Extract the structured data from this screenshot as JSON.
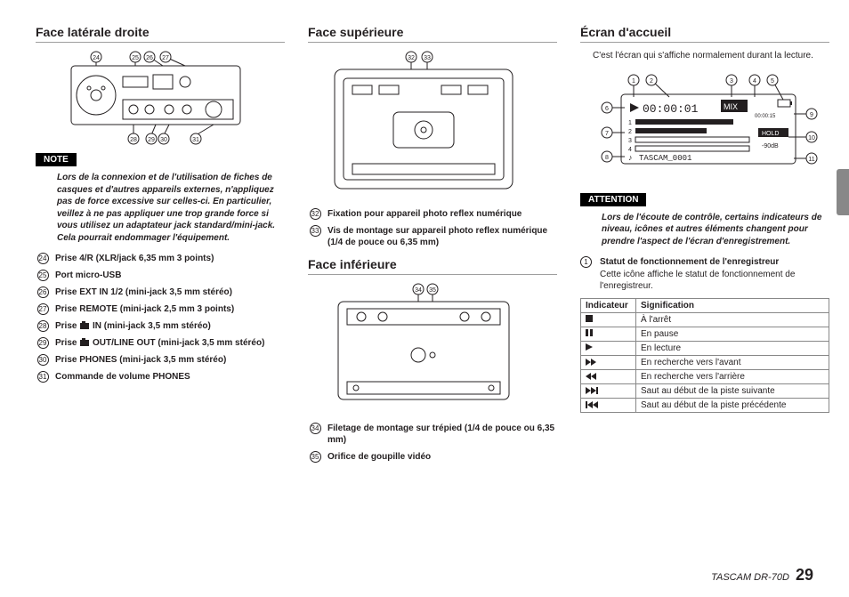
{
  "footer": {
    "model": "TASCAM DR-70D",
    "page": "29"
  },
  "col1": {
    "heading": "Face latérale droite",
    "note_label": "NOTE",
    "note_text": "Lors de la connexion et de l'utilisation de fiches de casques et d'autres appareils externes, n'appliquez pas de force excessive sur celles-ci. En particulier, veillez à ne pas appliquer une trop grande force si vous utilisez un adaptateur jack standard/mini-jack. Cela pourrait endommager l'équipement.",
    "items": [
      {
        "n": "24",
        "text": "Prise 4/R (XLR/jack 6,35 mm 3 points)"
      },
      {
        "n": "25",
        "text": "Port micro-USB"
      },
      {
        "n": "26",
        "text": "Prise EXT IN 1/2 (mini-jack 3,5 mm stéréo)"
      },
      {
        "n": "27",
        "text": "Prise REMOTE (mini-jack 2,5 mm 3 points)"
      },
      {
        "n": "28",
        "pre": "Prise ",
        "post": " IN (mini-jack 3,5 mm stéréo)",
        "cam": true
      },
      {
        "n": "29",
        "pre": "Prise ",
        "post": " OUT/LINE OUT (mini-jack 3,5 mm stéréo)",
        "cam": true
      },
      {
        "n": "30",
        "text": "Prise PHONES (mini-jack 3,5 mm stéréo)"
      },
      {
        "n": "31",
        "text": "Commande de volume PHONES"
      }
    ],
    "callouts_top": [
      "24",
      "25",
      "26",
      "27"
    ],
    "callouts_bottom": [
      "28",
      "29",
      "30",
      "31"
    ]
  },
  "col2": {
    "heading_top": "Face supérieure",
    "items_top": [
      {
        "n": "32",
        "text": "Fixation pour appareil photo reflex numérique"
      },
      {
        "n": "33",
        "text": "Vis de montage sur appareil photo reflex numérique (1/4 de pouce ou 6,35 mm)"
      }
    ],
    "callouts_top": [
      "32",
      "33"
    ],
    "heading_bottom": "Face inférieure",
    "items_bottom": [
      {
        "n": "34",
        "text": "Filetage de montage sur trépied (1/4 de pouce ou 6,35 mm)"
      },
      {
        "n": "35",
        "text": "Orifice de goupille vidéo"
      }
    ],
    "callouts_bottom": [
      "34",
      "35"
    ]
  },
  "col3": {
    "heading": "Écran d'accueil",
    "intro": "C'est l'écran qui s'affiche normalement durant la lecture.",
    "attention_label": "ATTENTION",
    "attention_text": "Lors de l'écoute de contrôle, certains indicateurs de niveau, icônes et autres éléments changent pour prendre l'aspect de l'écran d'enregistrement.",
    "item1": {
      "n": "1",
      "title": "Statut de fonctionnement de l'enregistreur",
      "desc": "Cette icône affiche le statut de fonctionnement de l'enregistreur."
    },
    "table": {
      "head": [
        "Indicateur",
        "Signification"
      ],
      "rows": [
        {
          "icon": "stop",
          "text": "À l'arrêt"
        },
        {
          "icon": "pause",
          "text": "En pause"
        },
        {
          "icon": "play",
          "text": "En lecture"
        },
        {
          "icon": "ff",
          "text": "En recherche vers l'avant"
        },
        {
          "icon": "rw",
          "text": "En recherche vers l'arrière"
        },
        {
          "icon": "next",
          "text": "Saut au début de la piste suivante"
        },
        {
          "icon": "prev",
          "text": "Saut au début de la piste précédente"
        }
      ]
    },
    "screen_callouts": [
      "1",
      "2",
      "3",
      "4",
      "5",
      "6",
      "7",
      "8",
      "9",
      "10",
      "11"
    ],
    "lcd": {
      "time": "00:00:01",
      "mix": "MIX",
      "remain": "00:00:15",
      "hold": "HOLD",
      "db": "-90dB",
      "file_prefix": "♪",
      "file": "TASCAM_0001"
    }
  }
}
